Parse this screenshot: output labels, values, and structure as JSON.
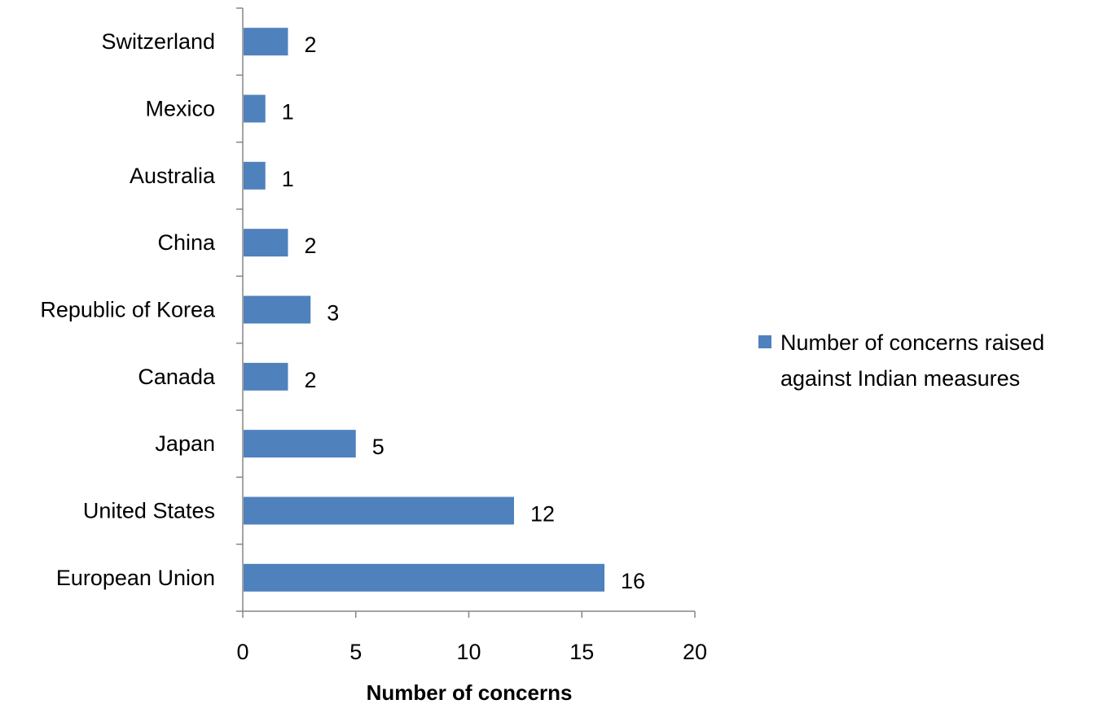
{
  "chart_data": {
    "type": "bar",
    "orientation": "horizontal",
    "categories": [
      "European Union",
      "United States",
      "Japan",
      "Canada",
      "Republic of Korea",
      "China",
      "Australia",
      "Mexico",
      "Switzerland"
    ],
    "series": [
      {
        "name": "Number of concerns raised against Indian measures",
        "values": [
          16,
          12,
          5,
          2,
          3,
          2,
          1,
          1,
          2
        ],
        "color": "#4f81bd"
      }
    ],
    "xlabel": "Number of concerns",
    "ylabel": "",
    "xlim": [
      0,
      20
    ],
    "xticks": [
      0,
      5,
      10,
      15,
      20
    ],
    "data_labels": true,
    "grid": false,
    "legend_position": "right",
    "legend_lines": [
      "Number of concerns raised",
      "against Indian measures"
    ]
  }
}
